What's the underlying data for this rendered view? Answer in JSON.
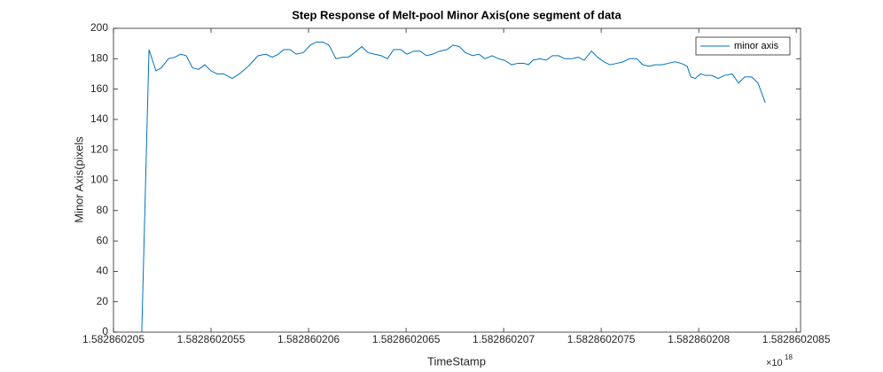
{
  "chart_data": {
    "type": "line",
    "title": "Step Response of Melt-pool Minor Axis(one segment of data",
    "xlabel": "TimeStamp",
    "ylabel": "Minor Axis(pixels",
    "x_exponent": {
      "base": "×10",
      "power": "18"
    },
    "x": [
      1.582860205145,
      1.582860205182,
      1.582860205218,
      1.582860205245,
      1.582860205282,
      1.582860205314,
      1.582860205345,
      1.582860205373,
      1.582860205405,
      1.582860205436,
      1.582860205468,
      1.5828602055,
      1.582860205532,
      1.582860205564,
      1.582860205609,
      1.582860205645,
      1.582860205691,
      1.582860205741,
      1.582860205782,
      1.582860205814,
      1.582860205845,
      1.582860205873,
      1.582860205905,
      1.582860205936,
      1.582860205973,
      1.582860206009,
      1.582860206041,
      1.582860206073,
      1.582860206104,
      1.582860206141,
      1.582860206173,
      1.582860206204,
      1.582860206236,
      1.582860206273,
      1.582860206304,
      1.582860206336,
      1.582860206373,
      1.582860206404,
      1.582860206436,
      1.582860206473,
      1.582860206504,
      1.582860206541,
      1.582860206573,
      1.582860206604,
      1.582860206636,
      1.582860206673,
      1.582860206709,
      1.582860206741,
      1.582860206773,
      1.582860206804,
      1.582860206841,
      1.582860206873,
      1.582860206904,
      1.582860206941,
      1.582860206973,
      1.582860207004,
      1.582860207041,
      1.582860207073,
      1.582860207104,
      1.582860207127,
      1.58286020715,
      1.582860207186,
      1.582860207218,
      1.58286020725,
      1.582860207282,
      1.582860207313,
      1.58286020735,
      1.582860207382,
      1.582860207413,
      1.58286020745,
      1.582860207482,
      1.582860207513,
      1.582860207545,
      1.582860207582,
      1.582860207613,
      1.582860207645,
      1.582860207682,
      1.582860207713,
      1.582860207745,
      1.582860207777,
      1.582860207813,
      1.582860207845,
      1.582860207877,
      1.582860207909,
      1.582860207941,
      1.582860207959,
      1.582860207982,
      1.582860208009,
      1.582860208036,
      1.582860208068,
      1.5828602081,
      1.582860208132,
      1.582860208172,
      1.582860208204,
      1.582860208236,
      1.582860208272,
      1.582860208304,
      1.582860208341
    ],
    "series": [
      {
        "name": "minor axis",
        "color": "#0072bd",
        "values": [
          0,
          186,
          172,
          174,
          180,
          181,
          183,
          182,
          174,
          173,
          176,
          172,
          170,
          170,
          167,
          170,
          175,
          182,
          183,
          181,
          183,
          186,
          186,
          183,
          184,
          189,
          191,
          191,
          189,
          180,
          181,
          181,
          184,
          188,
          184,
          183,
          182,
          180,
          186,
          186,
          183,
          185,
          185,
          182,
          183,
          185,
          186,
          189,
          188,
          184,
          182,
          183,
          180,
          182,
          180,
          179,
          176,
          177,
          177,
          176,
          179,
          180,
          179,
          182,
          182,
          180,
          180,
          181,
          179,
          185,
          181,
          178,
          176,
          177,
          178,
          180,
          180,
          176,
          175,
          176,
          176,
          177,
          178,
          177,
          175,
          168,
          167,
          170,
          169,
          169,
          167,
          169,
          170,
          164,
          168,
          168,
          164,
          151
        ]
      }
    ],
    "xlim": [
      1.582860205,
      1.582860208522
    ],
    "xticks": [
      1.582860205,
      1.5828602055,
      1.582860206,
      1.5828602065,
      1.582860207,
      1.5828602075,
      1.582860208,
      1.5828602085
    ],
    "ylim": [
      0,
      200
    ],
    "yticks": [
      0,
      20,
      40,
      60,
      80,
      100,
      120,
      140,
      160,
      180,
      200
    ],
    "legend": "top-right"
  }
}
